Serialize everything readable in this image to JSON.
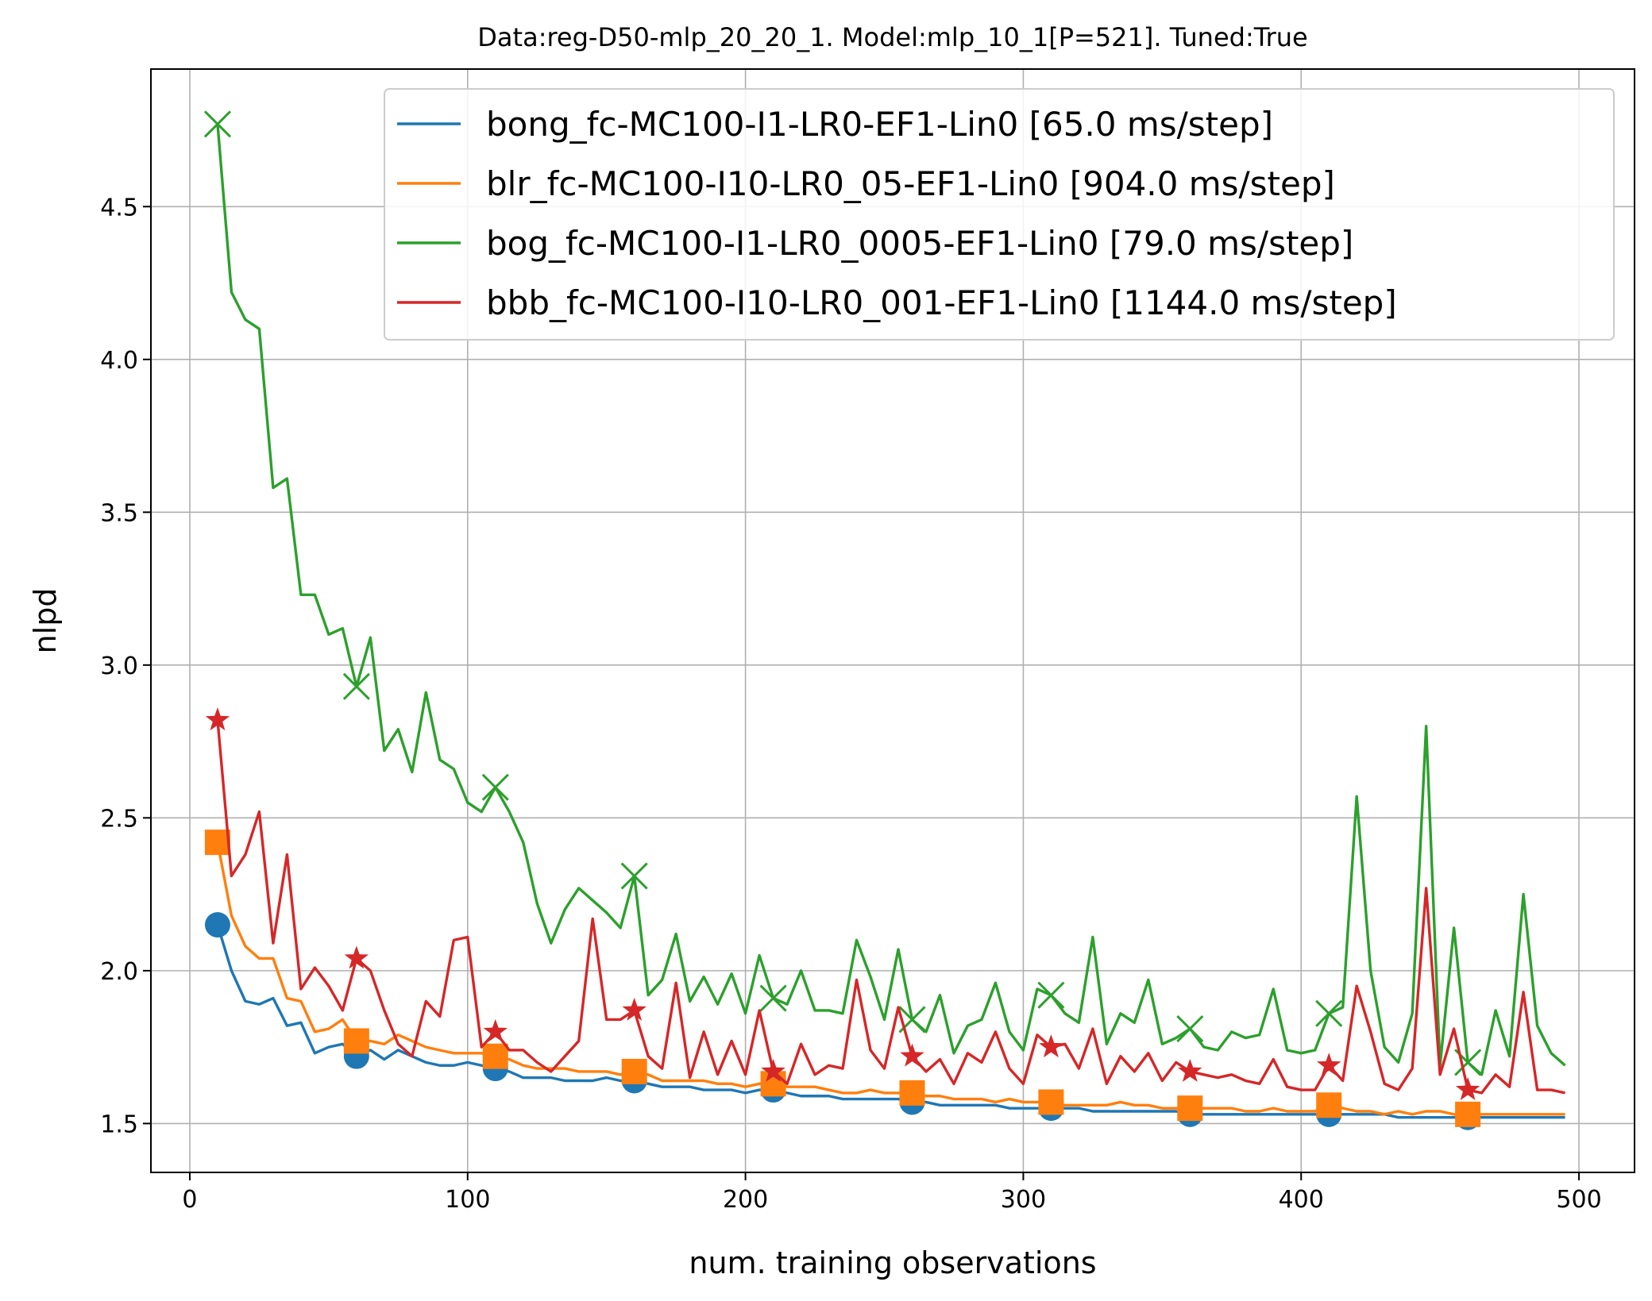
{
  "chart_data": {
    "type": "line",
    "title": "Data:reg-D50-mlp_20_20_1. Model:mlp_10_1[P=521]. Tuned:True",
    "xlabel": "num. training observations",
    "ylabel": "nlpd",
    "xlim": [
      -14,
      520
    ],
    "ylim": [
      1.34,
      4.95
    ],
    "xticks": [
      0,
      100,
      200,
      300,
      400,
      500
    ],
    "xtick_labels": [
      "0",
      "100",
      "200",
      "300",
      "400",
      "500"
    ],
    "yticks": [
      1.5,
      2.0,
      2.5,
      3.0,
      3.5,
      4.0,
      4.5
    ],
    "ytick_labels": [
      "1.5",
      "2.0",
      "2.5",
      "3.0",
      "3.5",
      "4.0",
      "4.5"
    ],
    "grid": true,
    "legend_position": "top-right",
    "x": [
      10,
      15,
      20,
      25,
      30,
      35,
      40,
      45,
      50,
      55,
      60,
      65,
      70,
      75,
      80,
      85,
      90,
      95,
      100,
      105,
      110,
      115,
      120,
      125,
      130,
      135,
      140,
      145,
      150,
      155,
      160,
      165,
      170,
      175,
      180,
      185,
      190,
      195,
      200,
      205,
      210,
      215,
      220,
      225,
      230,
      235,
      240,
      245,
      250,
      255,
      260,
      265,
      270,
      275,
      280,
      285,
      290,
      295,
      300,
      305,
      310,
      315,
      320,
      325,
      330,
      335,
      340,
      345,
      350,
      355,
      360,
      365,
      370,
      375,
      380,
      385,
      390,
      395,
      400,
      405,
      410,
      415,
      420,
      425,
      430,
      435,
      440,
      445,
      450,
      455,
      460,
      465,
      470,
      475,
      480,
      485,
      490,
      495
    ],
    "marker_x": [
      10,
      60,
      110,
      160,
      210,
      260,
      310,
      360,
      410,
      460
    ],
    "series": [
      {
        "name": "bong_fc-MC100-I1-LR0-EF1-Lin0 [65.0 ms/step]",
        "color": "#1f77b4",
        "marker": "circle",
        "values": [
          2.15,
          2.0,
          1.9,
          1.89,
          1.91,
          1.82,
          1.83,
          1.73,
          1.75,
          1.76,
          1.72,
          1.74,
          1.71,
          1.74,
          1.72,
          1.7,
          1.69,
          1.69,
          1.7,
          1.69,
          1.68,
          1.67,
          1.65,
          1.65,
          1.65,
          1.64,
          1.64,
          1.64,
          1.65,
          1.64,
          1.64,
          1.63,
          1.62,
          1.62,
          1.62,
          1.61,
          1.61,
          1.61,
          1.6,
          1.61,
          1.61,
          1.6,
          1.59,
          1.59,
          1.59,
          1.58,
          1.58,
          1.58,
          1.58,
          1.58,
          1.57,
          1.57,
          1.56,
          1.56,
          1.56,
          1.56,
          1.56,
          1.55,
          1.55,
          1.55,
          1.55,
          1.55,
          1.55,
          1.54,
          1.54,
          1.54,
          1.54,
          1.54,
          1.54,
          1.54,
          1.53,
          1.53,
          1.53,
          1.53,
          1.53,
          1.53,
          1.53,
          1.53,
          1.53,
          1.53,
          1.53,
          1.53,
          1.53,
          1.53,
          1.53,
          1.52,
          1.52,
          1.52,
          1.52,
          1.52,
          1.52,
          1.52,
          1.52,
          1.52,
          1.52,
          1.52,
          1.52,
          1.52
        ]
      },
      {
        "name": "blr_fc-MC100-I10-LR0_05-EF1-Lin0 [904.0 ms/step]",
        "color": "#ff7f0e",
        "marker": "square",
        "values": [
          2.42,
          2.18,
          2.08,
          2.04,
          2.04,
          1.91,
          1.9,
          1.8,
          1.81,
          1.84,
          1.77,
          1.77,
          1.76,
          1.79,
          1.77,
          1.75,
          1.74,
          1.73,
          1.73,
          1.73,
          1.72,
          1.71,
          1.69,
          1.68,
          1.68,
          1.68,
          1.67,
          1.67,
          1.67,
          1.66,
          1.67,
          1.66,
          1.64,
          1.64,
          1.64,
          1.64,
          1.63,
          1.63,
          1.62,
          1.63,
          1.63,
          1.62,
          1.62,
          1.62,
          1.61,
          1.6,
          1.6,
          1.61,
          1.6,
          1.6,
          1.6,
          1.59,
          1.59,
          1.58,
          1.58,
          1.58,
          1.57,
          1.58,
          1.57,
          1.57,
          1.57,
          1.56,
          1.56,
          1.56,
          1.56,
          1.57,
          1.56,
          1.56,
          1.55,
          1.55,
          1.55,
          1.55,
          1.55,
          1.55,
          1.54,
          1.54,
          1.55,
          1.54,
          1.54,
          1.54,
          1.56,
          1.55,
          1.54,
          1.54,
          1.53,
          1.54,
          1.53,
          1.54,
          1.54,
          1.53,
          1.53,
          1.53,
          1.53,
          1.53,
          1.53,
          1.53,
          1.53,
          1.53
        ]
      },
      {
        "name": "bog_fc-MC100-I1-LR0_0005-EF1-Lin0 [79.0 ms/step]",
        "color": "#2ca02c",
        "marker": "x",
        "values": [
          4.77,
          4.22,
          4.13,
          4.1,
          3.58,
          3.61,
          3.23,
          3.23,
          3.1,
          3.12,
          2.93,
          3.09,
          2.72,
          2.79,
          2.65,
          2.91,
          2.69,
          2.66,
          2.55,
          2.52,
          2.6,
          2.52,
          2.42,
          2.22,
          2.09,
          2.2,
          2.27,
          2.23,
          2.19,
          2.14,
          2.31,
          1.92,
          1.97,
          2.12,
          1.9,
          1.98,
          1.89,
          1.99,
          1.86,
          2.05,
          1.91,
          1.89,
          2.0,
          1.87,
          1.87,
          1.86,
          2.1,
          1.98,
          1.84,
          2.07,
          1.84,
          1.8,
          1.92,
          1.73,
          1.82,
          1.84,
          1.96,
          1.8,
          1.74,
          1.94,
          1.92,
          1.86,
          1.83,
          2.11,
          1.76,
          1.86,
          1.83,
          1.97,
          1.76,
          1.78,
          1.81,
          1.75,
          1.74,
          1.8,
          1.78,
          1.79,
          1.94,
          1.74,
          1.73,
          1.74,
          1.86,
          1.88,
          2.57,
          2.0,
          1.75,
          1.7,
          1.86,
          2.8,
          1.69,
          2.14,
          1.7,
          1.66,
          1.87,
          1.72,
          2.25,
          1.82,
          1.73,
          1.69
        ]
      },
      {
        "name": "bbb_fc-MC100-I10-LR0_001-EF1-Lin0 [1144.0 ms/step]",
        "color": "#d62728",
        "marker": "star",
        "values": [
          2.82,
          2.31,
          2.38,
          2.52,
          2.09,
          2.38,
          1.94,
          2.01,
          1.95,
          1.87,
          2.04,
          2.0,
          1.87,
          1.76,
          1.72,
          1.9,
          1.85,
          2.1,
          2.11,
          1.75,
          1.8,
          1.74,
          1.74,
          1.7,
          1.67,
          1.72,
          1.77,
          2.17,
          1.84,
          1.84,
          1.87,
          1.72,
          1.68,
          1.96,
          1.65,
          1.8,
          1.66,
          1.77,
          1.66,
          1.87,
          1.67,
          1.63,
          1.76,
          1.66,
          1.69,
          1.68,
          1.97,
          1.74,
          1.68,
          1.88,
          1.72,
          1.67,
          1.71,
          1.63,
          1.73,
          1.7,
          1.8,
          1.68,
          1.63,
          1.79,
          1.75,
          1.76,
          1.68,
          1.81,
          1.63,
          1.72,
          1.67,
          1.73,
          1.64,
          1.7,
          1.67,
          1.66,
          1.65,
          1.66,
          1.64,
          1.63,
          1.71,
          1.62,
          1.61,
          1.61,
          1.69,
          1.64,
          1.95,
          1.8,
          1.63,
          1.61,
          1.68,
          2.27,
          1.66,
          1.81,
          1.61,
          1.6,
          1.66,
          1.62,
          1.93,
          1.61,
          1.61,
          1.6
        ]
      }
    ]
  }
}
